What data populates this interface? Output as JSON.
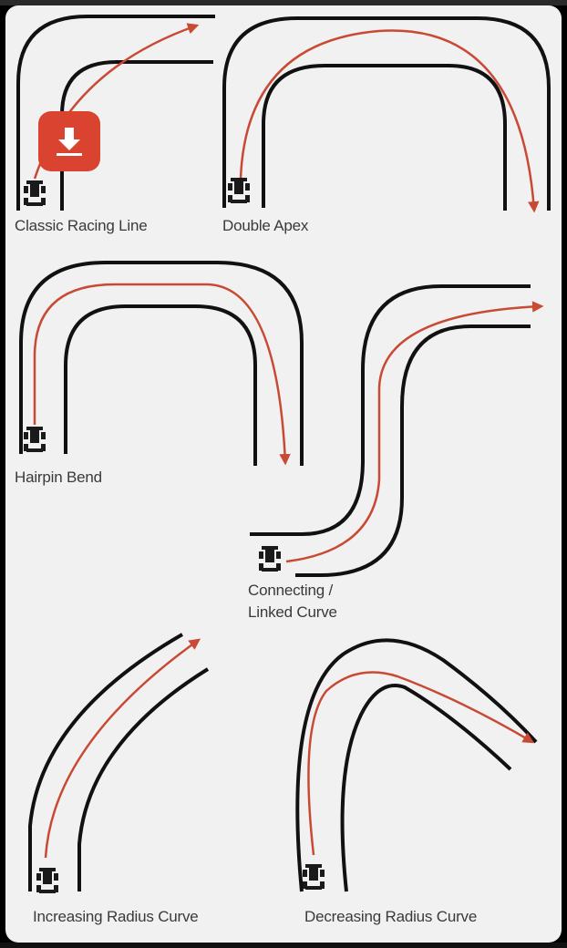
{
  "download_button": {
    "icon": "download-icon",
    "color": "#d9432f"
  },
  "colors": {
    "track": "#111111",
    "racing_line": "#c94a34"
  },
  "labels": {
    "classic": "Classic Racing Line",
    "double_apex": "Double Apex",
    "hairpin": "Hairpin Bend",
    "connecting": "Connecting /\nLinked Curve",
    "increasing": "Increasing Radius Curve",
    "decreasing": "Decreasing Radius Curve"
  }
}
